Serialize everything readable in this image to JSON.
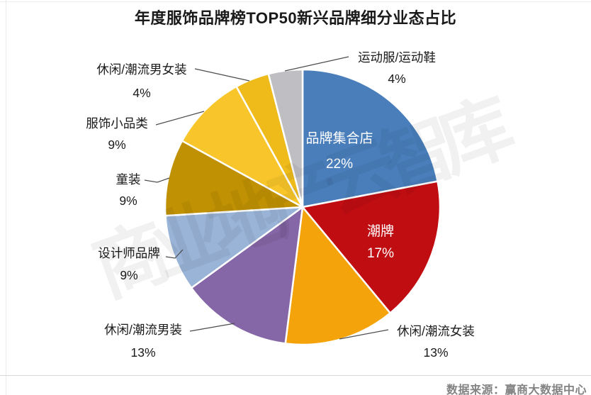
{
  "title": "年度服饰品牌榜TOP50新兴品牌细分业态占比",
  "watermark": {
    "text": "商业地产云智库"
  },
  "footer": {
    "source": "数据来源：赢商大数据中心"
  },
  "chart_data": {
    "type": "pie",
    "title": "年度服饰品牌榜TOP50新兴品牌细分业态占比",
    "unit": "%",
    "start_angle_deg": 0,
    "direction": "clockwise",
    "legend": "none",
    "slices": [
      {
        "label": "品牌集合店",
        "value": 22,
        "pct_text": "22%",
        "color": "#4A7EBB",
        "label_position": "inside"
      },
      {
        "label": "潮牌",
        "value": 17,
        "pct_text": "17%",
        "color": "#C00D12",
        "label_position": "inside"
      },
      {
        "label": "休闲/潮流女装",
        "value": 13,
        "pct_text": "13%",
        "color": "#F5A30B",
        "label_position": "outside"
      },
      {
        "label": "休闲/潮流男装",
        "value": 13,
        "pct_text": "13%",
        "color": "#8566A6",
        "label_position": "outside"
      },
      {
        "label": "设计师品牌",
        "value": 9,
        "pct_text": "9%",
        "color": "#9AB4D8",
        "label_position": "outside"
      },
      {
        "label": "童装",
        "value": 9,
        "pct_text": "9%",
        "color": "#C09103",
        "label_position": "outside"
      },
      {
        "label": "服饰小品类",
        "value": 9,
        "pct_text": "9%",
        "color": "#F8C62A",
        "label_position": "outside"
      },
      {
        "label": "休闲/潮流男女装",
        "value": 4,
        "pct_text": "4%",
        "color": "#EEBB1A",
        "label_position": "outside"
      },
      {
        "label": "运动服/运动鞋",
        "value": 4,
        "pct_text": "4%",
        "color": "#BFBFC3",
        "label_position": "outside"
      }
    ]
  }
}
